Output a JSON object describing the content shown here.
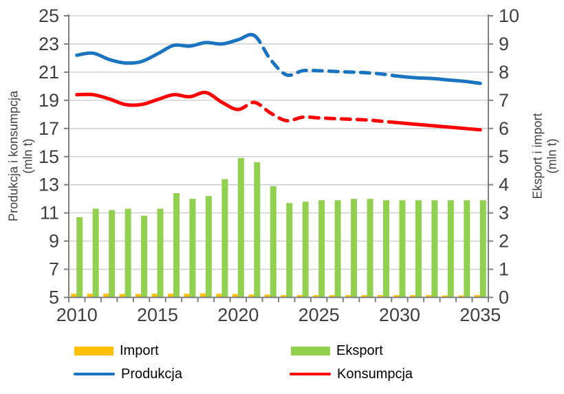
{
  "chart_data": {
    "type": "combo",
    "x": [
      2010,
      2011,
      2012,
      2013,
      2014,
      2015,
      2016,
      2017,
      2018,
      2019,
      2020,
      2021,
      2022,
      2023,
      2024,
      2025,
      2026,
      2027,
      2028,
      2029,
      2030,
      2031,
      2032,
      2033,
      2034,
      2035
    ],
    "x_tick_labels": [
      "2010",
      "2015",
      "2020",
      "2025",
      "2030",
      "2035"
    ],
    "grid": true,
    "left_axis": {
      "title": "Produkcja i konsumpcja",
      "unit": "(mln t)",
      "min": 5,
      "max": 25,
      "step": 2,
      "ticks": [
        25,
        23,
        21,
        19,
        17,
        15,
        13,
        11,
        9,
        7,
        5
      ]
    },
    "right_axis": {
      "title": "Eksport i import",
      "unit": "(mln t)",
      "min": 0,
      "max": 10,
      "step": 1,
      "ticks": [
        10,
        9,
        8,
        7,
        6,
        5,
        4,
        3,
        2,
        1,
        0
      ]
    },
    "series": [
      {
        "name": "Import",
        "type": "bar",
        "axis": "right",
        "color": "#FFC000",
        "values": [
          0.13,
          0.13,
          0.13,
          0.12,
          0.12,
          0.13,
          0.13,
          0.13,
          0.14,
          0.13,
          0.12,
          0.1,
          0.1,
          0.08,
          0.08,
          0.08,
          0.08,
          0.08,
          0.08,
          0.08,
          0.08,
          0.08,
          0.08,
          0.07,
          0.07,
          0.08
        ]
      },
      {
        "name": "Eksport",
        "type": "bar",
        "axis": "right",
        "color": "#92D050",
        "values": [
          2.85,
          3.15,
          3.1,
          3.15,
          2.9,
          3.15,
          3.7,
          3.5,
          3.6,
          4.2,
          4.95,
          4.8,
          3.95,
          3.35,
          3.4,
          3.45,
          3.45,
          3.5,
          3.5,
          3.45,
          3.45,
          3.45,
          3.45,
          3.45,
          3.45,
          3.45
        ]
      },
      {
        "name": "Produkcja",
        "type": "line",
        "axis": "left",
        "color": "#1B74BF",
        "solid_until": 2021,
        "dashed_until": 2030,
        "values": [
          22.2,
          22.35,
          21.9,
          21.65,
          21.75,
          22.3,
          22.9,
          22.85,
          23.1,
          23.0,
          23.3,
          23.6,
          21.9,
          20.8,
          21.1,
          21.1,
          21.05,
          21.0,
          20.95,
          20.85,
          20.7,
          20.6,
          20.55,
          20.45,
          20.35,
          20.2
        ]
      },
      {
        "name": "Konsumpcja",
        "type": "line",
        "axis": "left",
        "color": "#FE0000",
        "solid_until": 2020,
        "dashed_until": 2030,
        "values": [
          19.4,
          19.4,
          19.1,
          18.7,
          18.7,
          19.05,
          19.4,
          19.25,
          19.55,
          18.85,
          18.35,
          18.85,
          18.1,
          17.55,
          17.8,
          17.75,
          17.7,
          17.65,
          17.6,
          17.5,
          17.4,
          17.3,
          17.2,
          17.1,
          17.0,
          16.9
        ]
      }
    ],
    "legend": {
      "position": "bottom",
      "entries": [
        {
          "label": "Import",
          "swatch": "bar",
          "series": 0
        },
        {
          "label": "Eksport",
          "swatch": "bar",
          "series": 1
        },
        {
          "label": "Produkcja",
          "swatch": "line",
          "series": 2
        },
        {
          "label": "Konsumpcja",
          "swatch": "line",
          "series": 3
        }
      ]
    },
    "colors": {
      "gridline": "#C9C9C9",
      "axis": "#7F7F7F",
      "tick_text": "#3F3F3F"
    }
  }
}
